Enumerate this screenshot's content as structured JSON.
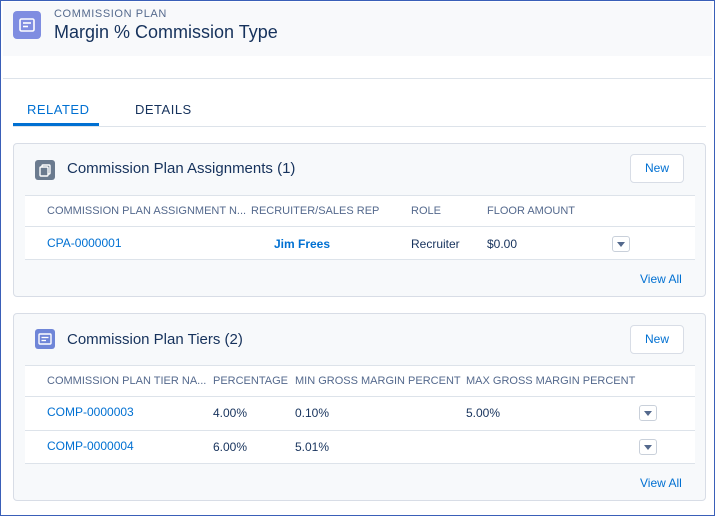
{
  "header": {
    "object_label": "COMMISSION PLAN",
    "title": "Margin % Commission Type",
    "icon": "commission-plan-icon"
  },
  "tabs": [
    {
      "label": "RELATED",
      "active": true
    },
    {
      "label": "DETAILS",
      "active": false
    }
  ],
  "assignments": {
    "title": "Commission Plan Assignments (1)",
    "icon": "assignment-icon",
    "new_label": "New",
    "columns": [
      "COMMISSION PLAN ASSIGNMENT N...",
      "RECRUITER/SALES REP",
      "ROLE",
      "FLOOR AMOUNT"
    ],
    "rows": [
      {
        "name": "CPA-0000001",
        "rep": "Jim Frees",
        "role": "Recruiter",
        "floor": "$0.00"
      }
    ],
    "view_all": "View All"
  },
  "tiers": {
    "title": "Commission Plan Tiers (2)",
    "icon": "tier-icon",
    "new_label": "New",
    "columns": [
      "COMMISSION PLAN TIER NA...",
      "PERCENTAGE",
      "MIN GROSS MARGIN PERCENT",
      "MAX GROSS MARGIN PERCENT"
    ],
    "rows": [
      {
        "name": "COMP-0000003",
        "percentage": "4.00%",
        "min": "0.10%",
        "max": "5.00%"
      },
      {
        "name": "COMP-0000004",
        "percentage": "6.00%",
        "min": "5.01%",
        "max": ""
      }
    ],
    "view_all": "View All"
  },
  "colors": {
    "accent": "#0070d2",
    "header_icon": "#7f8de1",
    "text": "#16325c"
  }
}
